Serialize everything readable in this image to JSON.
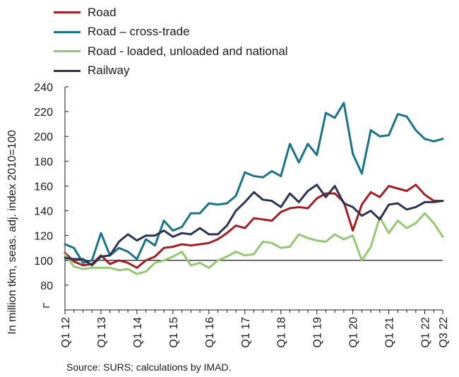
{
  "chart_data": {
    "type": "line",
    "ylabel": "In million tkm, seas. adj. index 2010=100",
    "ylim": [
      60,
      240
    ],
    "yticks": [
      80,
      100,
      120,
      140,
      160,
      180,
      200,
      220,
      240
    ],
    "reference_line": 100,
    "grid": false,
    "legend_position": "top-left",
    "x": [
      "Q1 12",
      "Q2 12",
      "Q3 12",
      "Q4 12",
      "Q1 13",
      "Q2 13",
      "Q3 13",
      "Q4 13",
      "Q1 14",
      "Q2 14",
      "Q3 14",
      "Q4 14",
      "Q1 15",
      "Q2 15",
      "Q3 15",
      "Q4 15",
      "Q1 16",
      "Q2 16",
      "Q3 16",
      "Q4 16",
      "Q1 17",
      "Q2 17",
      "Q3 17",
      "Q4 17",
      "Q1 18",
      "Q2 18",
      "Q3 18",
      "Q4 18",
      "Q1 19",
      "Q2 19",
      "Q3 19",
      "Q4 19",
      "Q1 20",
      "Q2 20",
      "Q3 20",
      "Q4 20",
      "Q1 21",
      "Q2 21",
      "Q3 21",
      "Q4 21",
      "Q1 22",
      "Q2 22",
      "Q3 22"
    ],
    "xtick_labels": [
      "Q1 12",
      "Q1 13",
      "Q1 14",
      "Q1 15",
      "Q1 16",
      "Q1 17",
      "Q1 18",
      "Q1 19",
      "Q1 20",
      "Q1 21",
      "Q1 22",
      "Q3 22"
    ],
    "series": [
      {
        "name": "Road",
        "color": "#a41e22",
        "values": [
          106,
          99,
          96,
          97,
          104,
          97,
          100,
          98,
          94,
          100,
          103,
          110,
          111,
          113,
          112,
          113,
          114,
          117,
          122,
          128,
          126,
          134,
          133,
          132,
          139,
          142,
          143,
          142,
          150,
          154,
          154,
          147,
          124,
          145,
          155,
          151,
          160,
          158,
          156,
          161,
          153,
          148,
          148
        ]
      },
      {
        "name": "Road – cross-trade",
        "color": "#17748a",
        "values": [
          113,
          110,
          98,
          100,
          122,
          104,
          110,
          107,
          101,
          117,
          112,
          132,
          124,
          127,
          138,
          138,
          146,
          145,
          146,
          152,
          171,
          168,
          167,
          172,
          168,
          194,
          179,
          194,
          185,
          219,
          215,
          227,
          186,
          170,
          205,
          200,
          201,
          218,
          216,
          205,
          198,
          196,
          198
        ]
      },
      {
        "name": "Road - loaded, unloaded and national",
        "color": "#94c973",
        "values": [
          105,
          95,
          93,
          94,
          94,
          94,
          92,
          93,
          89,
          91,
          98,
          100,
          103,
          107,
          96,
          98,
          94,
          100,
          103,
          107,
          104,
          105,
          115,
          114,
          110,
          111,
          121,
          118,
          116,
          115,
          121,
          117,
          120,
          100,
          111,
          135,
          122,
          132,
          126,
          130,
          138,
          130,
          119
        ]
      },
      {
        "name": "Railway",
        "color": "#2c3454",
        "values": [
          102,
          101,
          101,
          96,
          103,
          104,
          115,
          121,
          116,
          120,
          120,
          124,
          119,
          122,
          121,
          126,
          121,
          121,
          128,
          140,
          147,
          155,
          149,
          148,
          143,
          154,
          147,
          156,
          161,
          151,
          160,
          146,
          143,
          136,
          140,
          133,
          145,
          146,
          141,
          143,
          147,
          147,
          148
        ]
      }
    ]
  },
  "source": "Source: SURS; calculations by IMAD."
}
